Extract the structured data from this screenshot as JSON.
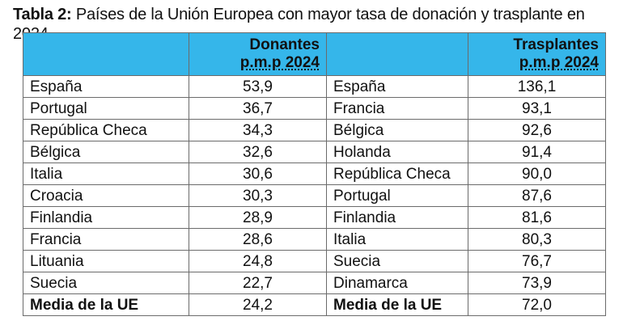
{
  "caption": {
    "lead": "Tabla 2:",
    "text": " Países de la Unión Europea con mayor tasa de donación y trasplante en 2024"
  },
  "header": {
    "donantes_line1": "Donantes",
    "donantes_line2": "p.m.p 2024",
    "trasplantes_line1": "Trasplantes",
    "trasplantes_line2": "p.m.p 2024"
  },
  "rows": [
    {
      "d_country": "España",
      "d_value": "53,9",
      "t_country": "España",
      "t_value": "136,1"
    },
    {
      "d_country": "Portugal",
      "d_value": "36,7",
      "t_country": "Francia",
      "t_value": "93,1"
    },
    {
      "d_country": "República Checa",
      "d_value": "34,3",
      "t_country": "Bélgica",
      "t_value": "92,6"
    },
    {
      "d_country": "Bélgica",
      "d_value": "32,6",
      "t_country": "Holanda",
      "t_value": "91,4"
    },
    {
      "d_country": "Italia",
      "d_value": "30,6",
      "t_country": "República Checa",
      "t_value": "90,0"
    },
    {
      "d_country": "Croacia",
      "d_value": "30,3",
      "t_country": "Portugal",
      "t_value": "87,6"
    },
    {
      "d_country": "Finlandia",
      "d_value": "28,9",
      "t_country": "Finlandia",
      "t_value": "81,6"
    },
    {
      "d_country": "Francia",
      "d_value": "28,6",
      "t_country": "Italia",
      "t_value": "80,3"
    },
    {
      "d_country": "Lituania",
      "d_value": "24,8",
      "t_country": "Suecia",
      "t_value": "76,7"
    },
    {
      "d_country": "Suecia",
      "d_value": "22,7",
      "t_country": "Dinamarca",
      "t_value": "73,9"
    }
  ],
  "summary": {
    "d_label": "Media de la UE",
    "d_value": "24,2",
    "t_label": "Media de la UE",
    "t_value": "72,0"
  },
  "colors": {
    "header_background": "#35b6ea",
    "border": "#6b6b6b"
  }
}
